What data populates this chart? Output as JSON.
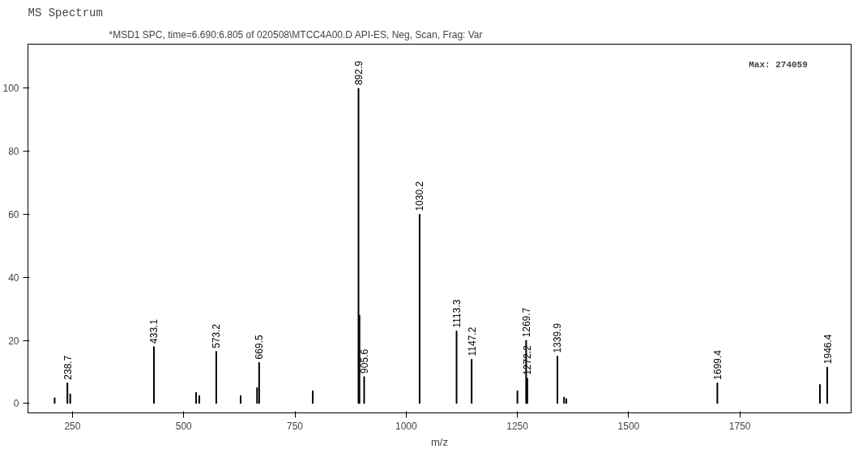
{
  "chart_data": {
    "type": "bar",
    "title": "MS Spectrum",
    "subtitle": "*MSD1 SPC, time=6.690:6.805 of 020508\\MTCC4A00.D    API-ES, Neg, Scan, Frag: Var",
    "xlabel": "m/z",
    "x": [
      210,
      238.7,
      245,
      433.1,
      528,
      535,
      573.2,
      628,
      665,
      669.5,
      790,
      892.9,
      895,
      905.6,
      1030.2,
      1113.3,
      1147.2,
      1250,
      1269.7,
      1272.2,
      1339.9,
      1355,
      1360,
      1699.4,
      1930,
      1946.4
    ],
    "values": [
      1.8,
      6.5,
      3,
      18,
      3.5,
      2.5,
      16.5,
      2.5,
      5,
      13,
      4,
      100,
      28,
      8.5,
      60,
      23,
      14,
      4,
      20,
      8,
      15,
      2,
      1.5,
      6.5,
      6,
      11.5
    ],
    "color": "#000000",
    "xlim": [
      150,
      2000
    ],
    "xticks": [
      250,
      500,
      750,
      1000,
      1250,
      1500,
      1750
    ],
    "ylim": [
      -3,
      114
    ],
    "yticks": [
      0,
      20,
      40,
      60,
      80,
      100
    ],
    "grid": false,
    "annotations": [
      {
        "text": "238.7",
        "x": 238.7,
        "y": 6.5
      },
      {
        "text": "433.1",
        "x": 433.1,
        "y": 18
      },
      {
        "text": "573.2",
        "x": 573.2,
        "y": 16.5
      },
      {
        "text": "669.5",
        "x": 669.5,
        "y": 13
      },
      {
        "text": "892.9",
        "x": 892.9,
        "y": 100
      },
      {
        "text": "905.6",
        "x": 905.6,
        "y": 8.5
      },
      {
        "text": "1030.2",
        "x": 1030.2,
        "y": 60
      },
      {
        "text": "1113.3",
        "x": 1113.3,
        "y": 23
      },
      {
        "text": "1147.2",
        "x": 1147.2,
        "y": 14
      },
      {
        "text": "1269.7",
        "x": 1269.7,
        "y": 20
      },
      {
        "text": "1272.2",
        "x": 1272.2,
        "y": 8
      },
      {
        "text": "1339.9",
        "x": 1339.9,
        "y": 15
      },
      {
        "text": "1699.4",
        "x": 1699.4,
        "y": 6.5
      },
      {
        "text": "1946.4",
        "x": 1946.4,
        "y": 11.5
      },
      "Max:  274059"
    ]
  }
}
